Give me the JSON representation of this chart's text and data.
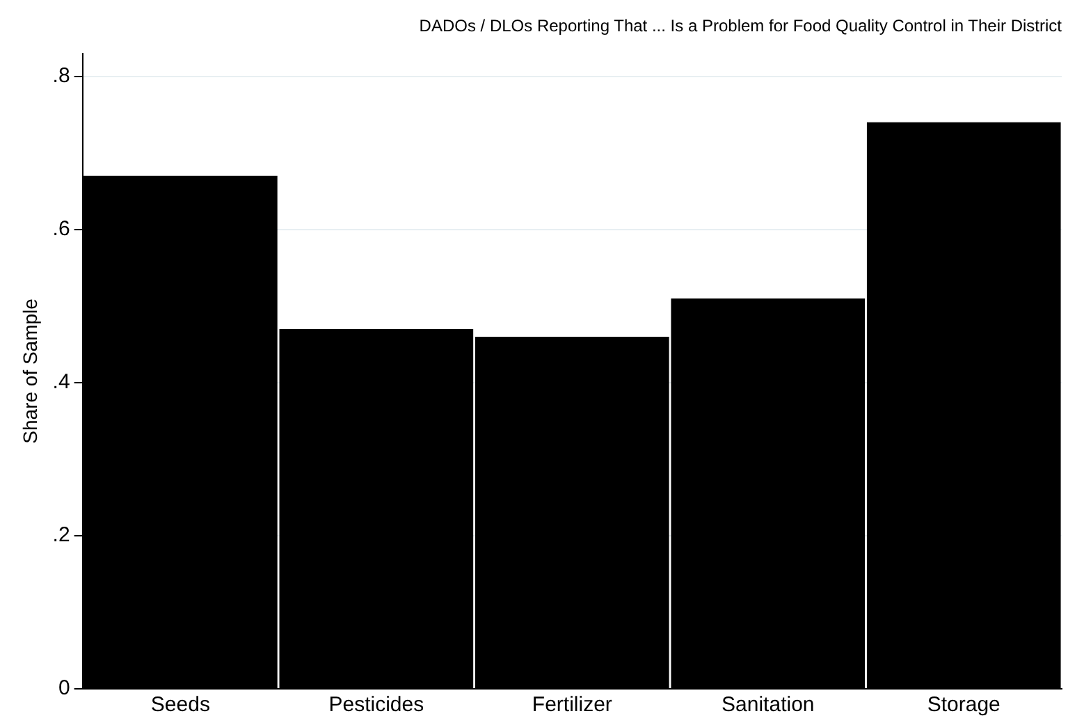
{
  "chart_data": {
    "type": "bar",
    "title": "DADOs / DLOs Reporting That ... Is a Problem for Food Quality Control in Their District",
    "ylabel": "Share of Sample",
    "categories": [
      "Seeds",
      "Pesticides",
      "Fertilizer",
      "Sanitation",
      "Storage"
    ],
    "values": [
      0.67,
      0.47,
      0.46,
      0.51,
      0.74
    ],
    "color": "#000000",
    "ylim": [
      0,
      0.83
    ],
    "yticks": [
      0,
      {
        "value": 0.2,
        "label": ".2"
      },
      {
        "value": 0.4,
        "label": ".4"
      },
      {
        "value": 0.6,
        "label": ".6"
      },
      {
        "value": 0.8,
        "label": ".8"
      }
    ],
    "grid": "y",
    "legend": false
  }
}
